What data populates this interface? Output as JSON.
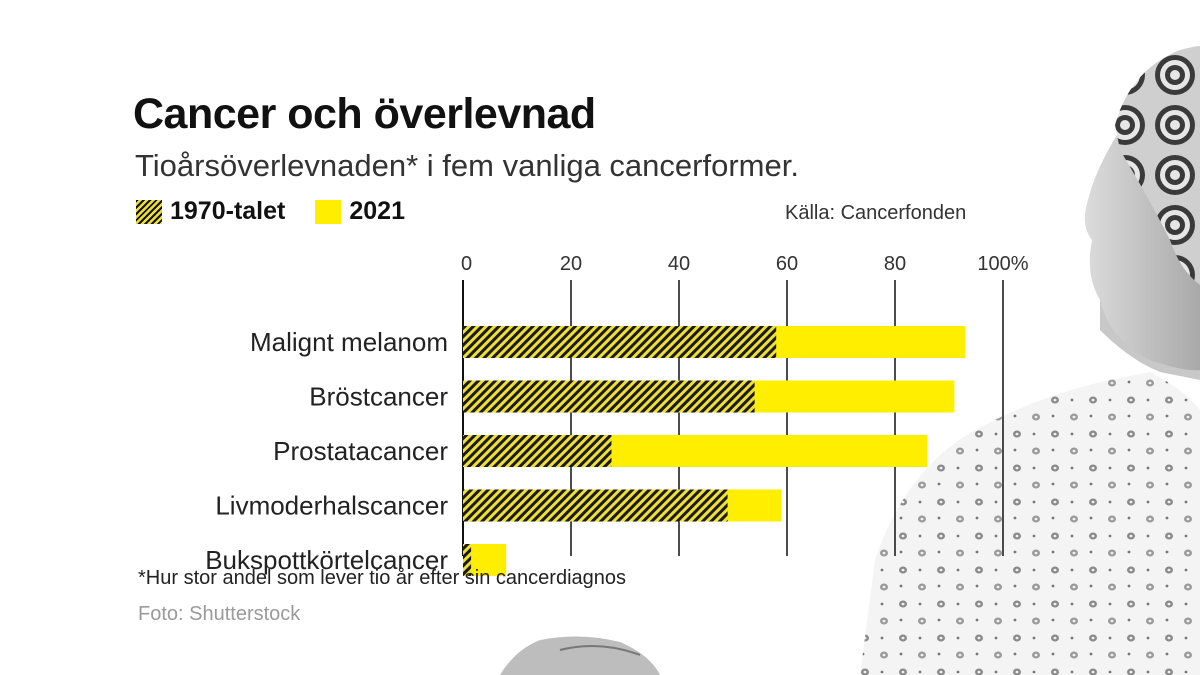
{
  "title": "Cancer och överlevnad",
  "subtitle": "Tioårsöverlevnaden* i fem vanliga cancerformer.",
  "source": "Källa: Cancerfonden",
  "footnote": "*Hur stor andel som lever tio år efter sin cancerdiagnos",
  "photo_credit": "Foto: Shutterstock",
  "colors": {
    "series_1970": "#1a1a1a",
    "series_2021": "#ffee00",
    "hatch_bg": "#f0e030"
  },
  "chart_data": {
    "type": "bar",
    "orientation": "horizontal",
    "stacking": "overlay",
    "categories": [
      "Malignt melanom",
      "Bröstcancer",
      "Prostatacancer",
      "Livmoderhalscancer",
      "Bukspottkörtelcancer"
    ],
    "series": [
      {
        "name": "1970-talet",
        "pattern": "hatched",
        "values": [
          58,
          54,
          27.5,
          49,
          1.5
        ]
      },
      {
        "name": "2021",
        "pattern": "solid",
        "values": [
          93,
          91,
          86,
          59,
          8
        ]
      }
    ],
    "xlim": [
      0,
      100
    ],
    "xticks": [
      0,
      20,
      40,
      60,
      80,
      100
    ],
    "xtick_labels": [
      "0",
      "20",
      "40",
      "60",
      "80",
      "100%"
    ],
    "x_axis_position": "top",
    "grid": true,
    "legend_position": "top-left"
  }
}
